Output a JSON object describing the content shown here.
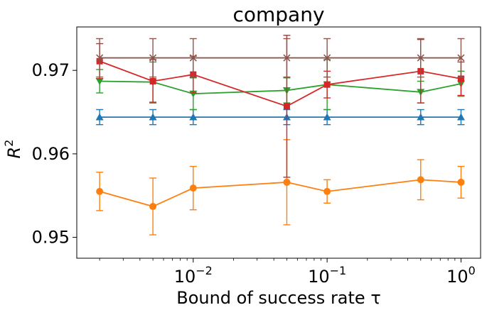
{
  "chart_data": {
    "type": "line",
    "title": "company",
    "xlabel": "Bound of success rate τ",
    "ylabel": "R",
    "ylabel_superscript": "2",
    "xscale": "log",
    "xlim": [
      0.00135,
      1.4
    ],
    "ylim": [
      0.9475,
      0.9752
    ],
    "x": [
      0.002,
      0.005,
      0.01,
      0.05,
      0.1,
      0.5,
      1.0
    ],
    "xticks": [
      {
        "value": 0.01,
        "base": "10",
        "exp": "−2"
      },
      {
        "value": 0.1,
        "base": "10",
        "exp": "−1"
      },
      {
        "value": 1.0,
        "base": "10",
        "exp": "0"
      }
    ],
    "yticks": [
      {
        "value": 0.95,
        "label": "0.95"
      },
      {
        "value": 0.96,
        "label": "0.96"
      },
      {
        "value": 0.97,
        "label": "0.97"
      }
    ],
    "grid": false,
    "legend": "none",
    "series": [
      {
        "color": "#1f77b4",
        "marker": "triangle-up",
        "values": [
          0.9644,
          0.9644,
          0.9644,
          0.9644,
          0.9644,
          0.9644,
          0.9644
        ],
        "errors": [
          0.0009,
          0.0009,
          0.0009,
          0.0009,
          0.0009,
          0.0009,
          0.0009
        ]
      },
      {
        "color": "#ff7f0e",
        "marker": "circle",
        "values": [
          0.9555,
          0.9537,
          0.9559,
          0.9566,
          0.9555,
          0.9569,
          0.9566
        ],
        "errors": [
          0.0023,
          0.0034,
          0.0026,
          0.0051,
          0.0014,
          0.0024,
          0.0019
        ]
      },
      {
        "color": "#2ca02c",
        "marker": "triangle-down",
        "values": [
          0.9687,
          0.9686,
          0.9672,
          0.9676,
          0.9683,
          0.9674,
          0.9684
        ],
        "errors": [
          0.0014,
          0.0024,
          0.0019,
          0.0015,
          0.003,
          0.0013,
          0.0015
        ]
      },
      {
        "color": "#d62728",
        "marker": "square",
        "values": [
          0.9711,
          0.9687,
          0.9695,
          0.9657,
          0.9683,
          0.9699,
          0.969
        ],
        "errors": [
          0.0021,
          0.0026,
          0.0022,
          0.0085,
          0.0016,
          0.0038,
          0.002
        ]
      },
      {
        "color": "#8c564b",
        "marker": "x",
        "values": [
          0.9715,
          0.9715,
          0.9715,
          0.9715,
          0.9715,
          0.9715,
          0.9715
        ],
        "errors": [
          0.0023,
          0.0023,
          0.0023,
          0.0023,
          0.0023,
          0.0023,
          0.0023
        ]
      }
    ]
  }
}
